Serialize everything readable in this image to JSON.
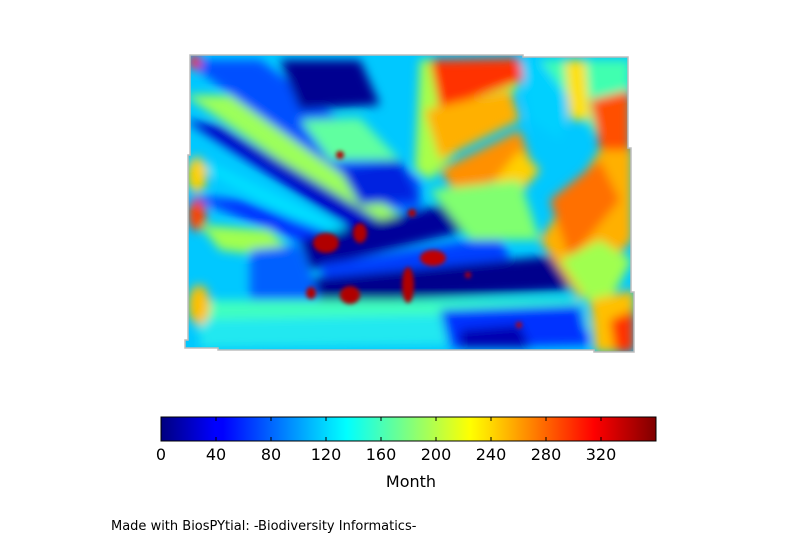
{
  "chart_data": {
    "type": "heatmap",
    "colormap": "jet",
    "colorbar": {
      "label": "Month",
      "range": [
        0,
        360
      ],
      "ticks": [
        0,
        40,
        80,
        120,
        160,
        200,
        240,
        280,
        320
      ],
      "orientation": "horizontal",
      "placement": "bottom"
    },
    "grid": false,
    "axes_visible": false
  },
  "credit": "Made with BiosPYtial: -Biodiversity Informatics-"
}
